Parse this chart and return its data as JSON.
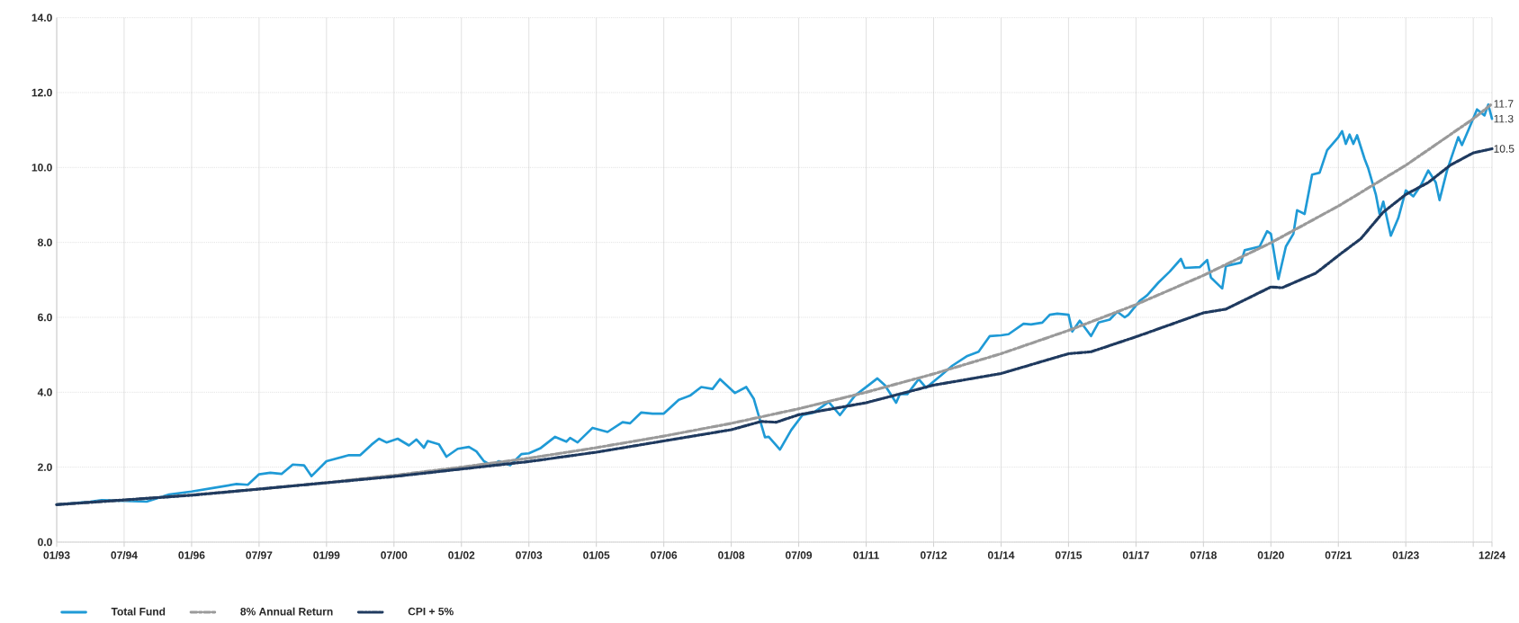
{
  "chart_data": {
    "type": "line",
    "xlim": [
      "1993-01",
      "2024-12"
    ],
    "ylim": [
      0,
      14
    ],
    "xticks": [
      {
        "value": "1993-01",
        "label": "01/93"
      },
      {
        "value": "1994-07",
        "label": "07/94"
      },
      {
        "value": "1996-01",
        "label": "01/96"
      },
      {
        "value": "1997-07",
        "label": "07/97"
      },
      {
        "value": "1999-01",
        "label": "01/99"
      },
      {
        "value": "2000-07",
        "label": "07/00"
      },
      {
        "value": "2002-01",
        "label": "01/02"
      },
      {
        "value": "2003-07",
        "label": "07/03"
      },
      {
        "value": "2005-01",
        "label": "01/05"
      },
      {
        "value": "2006-07",
        "label": "07/06"
      },
      {
        "value": "2008-01",
        "label": "01/08"
      },
      {
        "value": "2009-07",
        "label": "07/09"
      },
      {
        "value": "2011-01",
        "label": "01/11"
      },
      {
        "value": "2012-07",
        "label": "07/12"
      },
      {
        "value": "2014-01",
        "label": "01/14"
      },
      {
        "value": "2015-07",
        "label": "07/15"
      },
      {
        "value": "2017-01",
        "label": "01/17"
      },
      {
        "value": "2018-07",
        "label": "07/18"
      },
      {
        "value": "2020-01",
        "label": "01/20"
      },
      {
        "value": "2021-07",
        "label": "07/21"
      },
      {
        "value": "2023-01",
        "label": "01/23"
      },
      {
        "value": "2024-07",
        "label": null
      },
      {
        "value": "2024-12",
        "label": "12/24"
      }
    ],
    "yticks": [
      {
        "value": 0,
        "label": "0.0"
      },
      {
        "value": 2,
        "label": "2.0"
      },
      {
        "value": 4,
        "label": "4.0"
      },
      {
        "value": 6,
        "label": "6.0"
      },
      {
        "value": 8,
        "label": "8.0"
      },
      {
        "value": 10,
        "label": "10.0"
      },
      {
        "value": 12,
        "label": "12.0"
      },
      {
        "value": 14,
        "label": "14.0"
      }
    ],
    "grid": true,
    "legend": "bottom left",
    "series": [
      {
        "name": "Total Fund",
        "color": "#1f9ad6",
        "line_style": "solid",
        "x": [
          "1993-01",
          "1993-10",
          "1994-01",
          "1994-07",
          "1995-01",
          "1995-07",
          "1996-01",
          "1996-07",
          "1997-01",
          "1997-04",
          "1997-07",
          "1997-10",
          "1998-01",
          "1998-04",
          "1998-07",
          "1998-09",
          "1999-01",
          "1999-07",
          "1999-10",
          "2000-01",
          "2000-03",
          "2000-05",
          "2000-08",
          "2000-11",
          "2001-01",
          "2001-03",
          "2001-04",
          "2001-07",
          "2001-09",
          "2001-12",
          "2002-03",
          "2002-05",
          "2002-07",
          "2002-09",
          "2002-11",
          "2003-02",
          "2003-05",
          "2003-07",
          "2003-10",
          "2004-02",
          "2004-05",
          "2004-06",
          "2004-08",
          "2004-12",
          "2005-04",
          "2005-08",
          "2005-10",
          "2006-01",
          "2006-04",
          "2006-07",
          "2006-11",
          "2007-02",
          "2007-05",
          "2007-08",
          "2007-10",
          "2008-02",
          "2008-05",
          "2008-07",
          "2008-10",
          "2008-11",
          "2009-02",
          "2009-05",
          "2009-08",
          "2009-11",
          "2010-03",
          "2010-06",
          "2010-10",
          "2011-01",
          "2011-04",
          "2011-06",
          "2011-09",
          "2011-10",
          "2011-12",
          "2012-03",
          "2012-05",
          "2012-09",
          "2012-12",
          "2013-04",
          "2013-07",
          "2013-10",
          "2014-01",
          "2014-03",
          "2014-07",
          "2014-09",
          "2014-12",
          "2015-02",
          "2015-04",
          "2015-07",
          "2015-08",
          "2015-10",
          "2016-01",
          "2016-03",
          "2016-06",
          "2016-08",
          "2016-10",
          "2016-11",
          "2017-02",
          "2017-04",
          "2017-07",
          "2017-10",
          "2018-01",
          "2018-02",
          "2018-06",
          "2018-08",
          "2018-09",
          "2018-12",
          "2019-01",
          "2019-05",
          "2019-06",
          "2019-10",
          "2019-12",
          "2020-01",
          "2020-03",
          "2020-05",
          "2020-07",
          "2020-08",
          "2020-10",
          "2020-12",
          "2021-02",
          "2021-04",
          "2021-07",
          "2021-08",
          "2021-09",
          "2021-10",
          "2021-11",
          "2021-12",
          "2022-02",
          "2022-03",
          "2022-05",
          "2022-06",
          "2022-07",
          "2022-09",
          "2022-11",
          "2022-12",
          "2023-01",
          "2023-03",
          "2023-05",
          "2023-07",
          "2023-09",
          "2023-10",
          "2023-12",
          "2024-03",
          "2024-04",
          "2024-06",
          "2024-08",
          "2024-10",
          "2024-11",
          "2024-12"
        ],
        "values": [
          1.0,
          1.08,
          1.12,
          1.1,
          1.08,
          1.27,
          1.35,
          1.45,
          1.55,
          1.53,
          1.81,
          1.85,
          1.82,
          2.07,
          2.05,
          1.76,
          2.16,
          2.32,
          2.32,
          2.6,
          2.76,
          2.66,
          2.76,
          2.58,
          2.74,
          2.52,
          2.7,
          2.61,
          2.28,
          2.49,
          2.54,
          2.42,
          2.16,
          2.05,
          2.16,
          2.05,
          2.35,
          2.37,
          2.5,
          2.81,
          2.68,
          2.78,
          2.66,
          3.05,
          2.94,
          3.2,
          3.17,
          3.46,
          3.43,
          3.43,
          3.8,
          3.91,
          4.14,
          4.09,
          4.35,
          3.98,
          4.14,
          3.83,
          2.8,
          2.81,
          2.47,
          2.99,
          3.39,
          3.46,
          3.74,
          3.39,
          3.91,
          4.14,
          4.37,
          4.19,
          3.72,
          3.95,
          3.95,
          4.35,
          4.12,
          4.45,
          4.71,
          4.97,
          5.08,
          5.5,
          5.52,
          5.55,
          5.83,
          5.81,
          5.86,
          6.07,
          6.1,
          6.07,
          5.62,
          5.91,
          5.5,
          5.86,
          5.94,
          6.15,
          6.0,
          6.07,
          6.44,
          6.59,
          6.93,
          7.22,
          7.56,
          7.32,
          7.34,
          7.53,
          7.06,
          6.77,
          7.37,
          7.46,
          7.79,
          7.89,
          8.3,
          8.23,
          7.02,
          7.89,
          8.23,
          8.86,
          8.76,
          9.81,
          9.86,
          10.46,
          10.81,
          10.97,
          10.63,
          10.88,
          10.63,
          10.86,
          10.23,
          9.97,
          9.28,
          8.76,
          9.09,
          8.18,
          8.65,
          9.02,
          9.39,
          9.23,
          9.52,
          9.92,
          9.6,
          9.13,
          9.92,
          10.81,
          10.6,
          11.07,
          11.55,
          11.39,
          11.68,
          11.3
        ]
      },
      {
        "name": "8% Annual Return",
        "color": "#9a9a9a",
        "line_style": "dashed",
        "x": [
          "1993-01",
          "1994-07",
          "1996-01",
          "1997-07",
          "1999-01",
          "2000-07",
          "2002-01",
          "2003-07",
          "2005-01",
          "2006-07",
          "2008-01",
          "2009-07",
          "2011-01",
          "2012-07",
          "2014-01",
          "2015-07",
          "2017-01",
          "2018-07",
          "2020-01",
          "2021-07",
          "2023-01",
          "2024-07",
          "2024-12"
        ],
        "values": [
          1.0,
          1.12,
          1.26,
          1.41,
          1.59,
          1.78,
          2.0,
          2.24,
          2.52,
          2.83,
          3.17,
          3.56,
          4.0,
          4.49,
          5.03,
          5.65,
          6.34,
          7.12,
          7.99,
          8.97,
          10.06,
          11.3,
          11.7
        ]
      },
      {
        "name": "CPI + 5%",
        "color": "#1f3a5f",
        "line_style": "dotted",
        "x": [
          "1993-01",
          "1996-01",
          "2000-07",
          "2002-01",
          "2003-07",
          "2005-01",
          "2006-07",
          "2008-01",
          "2008-09",
          "2009-01",
          "2009-07",
          "2011-01",
          "2012-07",
          "2014-01",
          "2015-07",
          "2016-01",
          "2017-01",
          "2018-07",
          "2019-01",
          "2020-01",
          "2020-04",
          "2021-01",
          "2021-07",
          "2022-01",
          "2022-07",
          "2023-01",
          "2023-07",
          "2024-01",
          "2024-07",
          "2024-12"
        ],
        "values": [
          1.0,
          1.25,
          1.75,
          1.95,
          2.15,
          2.4,
          2.7,
          3.0,
          3.22,
          3.2,
          3.4,
          3.72,
          4.19,
          4.5,
          5.03,
          5.08,
          5.48,
          6.12,
          6.22,
          6.81,
          6.79,
          7.18,
          7.65,
          8.1,
          8.81,
          9.28,
          9.6,
          10.07,
          10.39,
          10.5
        ]
      }
    ],
    "annotations": [
      {
        "text": "11.7",
        "x": "2024-12",
        "y": 11.7
      },
      {
        "text": "11.3",
        "x": "2024-12",
        "y": 11.3
      },
      {
        "text": "10.5",
        "x": "2024-12",
        "y": 10.5
      }
    ]
  }
}
